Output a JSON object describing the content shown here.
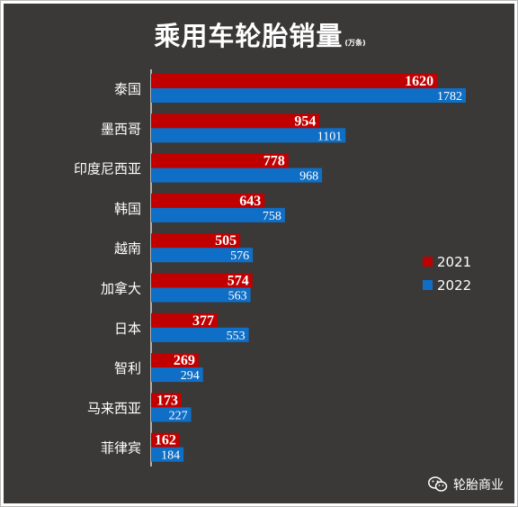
{
  "title": "乘用车轮胎销量",
  "unit": "(万条)",
  "brand": {
    "name": "轮胎商业",
    "icon": "wechat-icon"
  },
  "colors": {
    "background": "#3a3938",
    "series_2021": "#c00000",
    "series_2022": "#0f6fc6",
    "text": "#ffffff"
  },
  "chart_data": {
    "type": "bar",
    "orientation": "horizontal",
    "title": "乘用车轮胎销量",
    "unit": "(万条)",
    "categories": [
      "泰国",
      "墨西哥",
      "印度尼西亚",
      "韩国",
      "越南",
      "加拿大",
      "日本",
      "智利",
      "马来西亚",
      "菲律宾"
    ],
    "series": [
      {
        "name": "2021",
        "color": "#c00000",
        "values": [
          1620,
          954,
          778,
          643,
          505,
          574,
          377,
          269,
          173,
          162
        ]
      },
      {
        "name": "2022",
        "color": "#0f6fc6",
        "values": [
          1782,
          1101,
          968,
          758,
          576,
          563,
          553,
          294,
          227,
          184
        ]
      }
    ],
    "xlim": [
      0,
      1782
    ],
    "legend": "right",
    "grid": false
  }
}
